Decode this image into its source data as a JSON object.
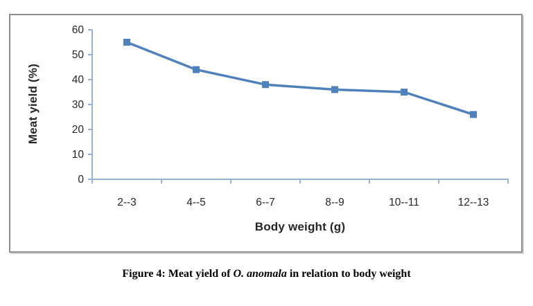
{
  "figure": {
    "caption": {
      "prefix": "Figure 4: Meat yield of ",
      "species": "O. anomala",
      "suffix": " in relation to body weight"
    }
  },
  "chart_data": {
    "type": "line",
    "categories": [
      "2--3",
      "4--5",
      "6--7",
      "8--9",
      "10--11",
      "12--13"
    ],
    "series": [
      {
        "name": "Meat yield (%)",
        "values": [
          55,
          44,
          38,
          36,
          35,
          26
        ]
      }
    ],
    "xlabel": "Body weight (g)",
    "ylabel": "Meat yield (%)",
    "ylim": [
      0,
      60
    ],
    "yticks": [
      0,
      10,
      20,
      30,
      40,
      50,
      60
    ],
    "grid": false,
    "legend_position": "none",
    "marker": "square",
    "colors": {
      "line": "#4f81bd",
      "marker": "#4f81bd",
      "axis": "#95b3d7",
      "tick_text": "#262626",
      "frame_border": "#8c8c8c"
    }
  }
}
